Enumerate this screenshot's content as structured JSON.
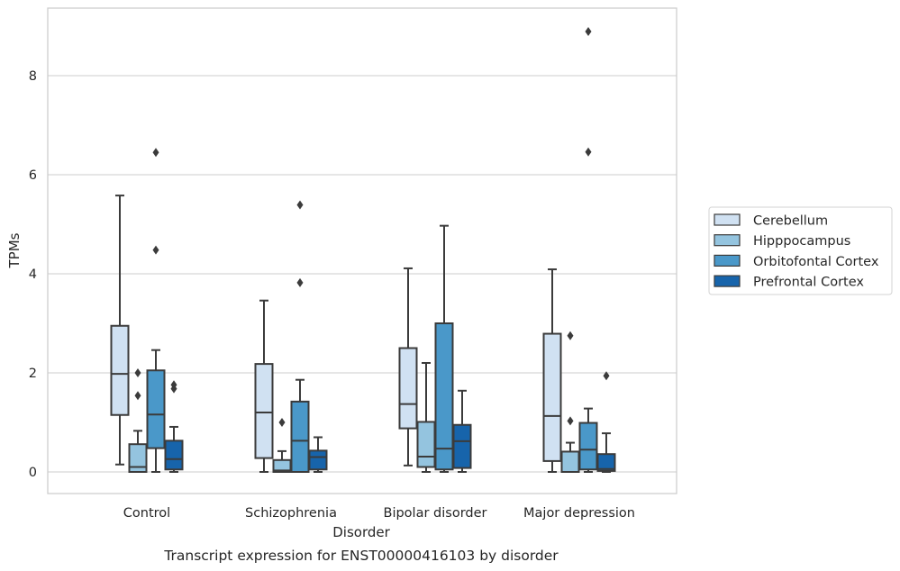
{
  "chart_data": {
    "type": "box",
    "title": "Transcript expression for ENST00000416103 by disorder",
    "xlabel": "Disorder",
    "ylabel": "TPMs",
    "ylim": [
      -0.45,
      9.35
    ],
    "yticks": [
      0,
      2,
      4,
      6,
      8
    ],
    "grid": true,
    "legend": "outside-right",
    "categories": [
      "Control",
      "Schizophrenia",
      "Bipolar disorder",
      "Major depression"
    ],
    "series": [
      {
        "name": "Cerebellum",
        "color": "#d0e1f2",
        "boxes": [
          {
            "whislo": 0.15,
            "q1": 1.15,
            "med": 1.98,
            "q3": 2.95,
            "whishi": 5.58,
            "fliers": []
          },
          {
            "whislo": 0.0,
            "q1": 0.28,
            "med": 1.2,
            "q3": 2.18,
            "whishi": 3.46,
            "fliers": []
          },
          {
            "whislo": 0.13,
            "q1": 0.88,
            "med": 1.37,
            "q3": 2.5,
            "whishi": 4.11,
            "fliers": []
          },
          {
            "whislo": 0.0,
            "q1": 0.22,
            "med": 1.13,
            "q3": 2.79,
            "whishi": 4.09,
            "fliers": []
          }
        ]
      },
      {
        "name": "Hipppocampus",
        "color": "#94c4df",
        "boxes": [
          {
            "whislo": 0.0,
            "q1": 0.0,
            "med": 0.1,
            "q3": 0.56,
            "whishi": 0.83,
            "fliers": [
              1.54,
              2.0
            ]
          },
          {
            "whislo": 0.0,
            "q1": 0.0,
            "med": 0.03,
            "q3": 0.24,
            "whishi": 0.42,
            "fliers": [
              1.0
            ]
          },
          {
            "whislo": 0.0,
            "q1": 0.1,
            "med": 0.31,
            "q3": 1.01,
            "whishi": 2.2,
            "fliers": []
          },
          {
            "whislo": 0.0,
            "q1": 0.0,
            "med": 0.0,
            "q3": 0.41,
            "whishi": 0.59,
            "fliers": [
              1.03,
              2.75
            ]
          }
        ]
      },
      {
        "name": "Orbitofontal Cortex",
        "color": "#4a98c9",
        "boxes": [
          {
            "whislo": 0.0,
            "q1": 0.48,
            "med": 1.16,
            "q3": 2.05,
            "whishi": 2.46,
            "fliers": [
              4.48,
              6.45
            ]
          },
          {
            "whislo": 0.0,
            "q1": 0.0,
            "med": 0.63,
            "q3": 1.42,
            "whishi": 1.86,
            "fliers": [
              3.82,
              5.39
            ]
          },
          {
            "whislo": 0.0,
            "q1": 0.05,
            "med": 0.47,
            "q3": 3.0,
            "whishi": 4.97,
            "fliers": []
          },
          {
            "whislo": 0.0,
            "q1": 0.05,
            "med": 0.45,
            "q3": 0.99,
            "whishi": 1.28,
            "fliers": [
              6.46,
              8.89
            ]
          }
        ]
      },
      {
        "name": "Prefrontal Cortex",
        "color": "#1764ab",
        "boxes": [
          {
            "whislo": 0.0,
            "q1": 0.05,
            "med": 0.26,
            "q3": 0.63,
            "whishi": 0.91,
            "fliers": [
              1.68,
              1.76
            ]
          },
          {
            "whislo": 0.0,
            "q1": 0.05,
            "med": 0.3,
            "q3": 0.43,
            "whishi": 0.7,
            "fliers": []
          },
          {
            "whislo": 0.0,
            "q1": 0.08,
            "med": 0.62,
            "q3": 0.95,
            "whishi": 1.64,
            "fliers": []
          },
          {
            "whislo": 0.0,
            "q1": 0.02,
            "med": 0.06,
            "q3": 0.36,
            "whishi": 0.78,
            "fliers": [
              1.94
            ]
          }
        ]
      }
    ]
  }
}
